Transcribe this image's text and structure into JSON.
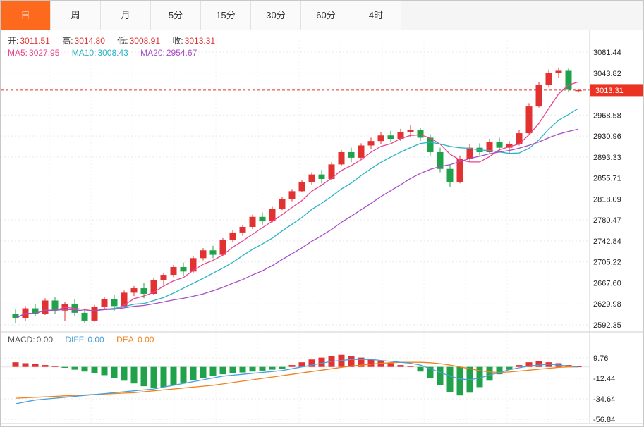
{
  "tabs": [
    {
      "label": "日",
      "active": true
    },
    {
      "label": "周",
      "active": false
    },
    {
      "label": "月",
      "active": false
    },
    {
      "label": "5分",
      "active": false
    },
    {
      "label": "15分",
      "active": false
    },
    {
      "label": "30分",
      "active": false
    },
    {
      "label": "60分",
      "active": false
    },
    {
      "label": "4时",
      "active": false
    }
  ],
  "ohlc_row": [
    {
      "label": "开:",
      "value": "3011.51"
    },
    {
      "label": "高:",
      "value": "3014.80"
    },
    {
      "label": "低:",
      "value": "3008.91"
    },
    {
      "label": "收:",
      "value": "3013.31"
    }
  ],
  "ma_row": [
    {
      "label": "MA5:",
      "value": "3027.95"
    },
    {
      "label": "MA10:",
      "value": "3008.43"
    },
    {
      "label": "MA20:",
      "value": "2954.67"
    }
  ],
  "macd_row": [
    {
      "label": "MACD:",
      "value": "0.00"
    },
    {
      "label": "DIFF:",
      "value": "0.00"
    },
    {
      "label": "DEA:",
      "value": "0.00"
    }
  ],
  "colors": {
    "up": "#e13131",
    "down": "#1fa24a",
    "ma5": "#e8448c",
    "ma10": "#29b3c8",
    "ma20": "#a94dc3",
    "diff": "#4a9fd8",
    "dea": "#f0821e",
    "price_line": "#e03030",
    "badge": "#ea3323",
    "tab_active": "#fd6a1e",
    "value_red": "#e03030",
    "macd_label": "#555555"
  },
  "chart_data": {
    "type": "candlestick",
    "title": "Daily gold price candlestick chart with MA5/MA10/MA20 and MACD",
    "legend_position": "top-left",
    "grid": true,
    "price_axis": {
      "min": 2592.35,
      "max": 3081.44,
      "step": 37.62,
      "labels": [
        {
          "v": 3081.44,
          "t": "3081.44"
        },
        {
          "v": 3043.82,
          "t": "3043.82"
        },
        {
          "v": 3006.2,
          "t": ""
        },
        {
          "v": 2968.58,
          "t": "2968.58"
        },
        {
          "v": 2930.96,
          "t": "2930.96"
        },
        {
          "v": 2893.33,
          "t": "2893.33"
        },
        {
          "v": 2855.71,
          "t": "2855.71"
        },
        {
          "v": 2818.09,
          "t": "2818.09"
        },
        {
          "v": 2780.47,
          "t": "2780.47"
        },
        {
          "v": 2742.84,
          "t": "2742.84"
        },
        {
          "v": 2705.22,
          "t": "2705.22"
        },
        {
          "v": 2667.6,
          "t": "2667.60"
        },
        {
          "v": 2629.98,
          "t": "2629.98"
        },
        {
          "v": 2592.35,
          "t": "2592.35"
        }
      ]
    },
    "current_price": {
      "value": 3013.31,
      "label": "3013.31"
    },
    "latest_ohlc": {
      "open": 3011.51,
      "high": 3014.8,
      "low": 3008.91,
      "close": 3013.31
    },
    "ma_values": {
      "ma5": 3027.95,
      "ma10": 3008.43,
      "ma20": 2954.67
    },
    "candles": [
      [
        2612,
        2620,
        2596,
        2604
      ],
      [
        2604,
        2626,
        2600,
        2622
      ],
      [
        2622,
        2630,
        2608,
        2612
      ],
      [
        2612,
        2640,
        2610,
        2636
      ],
      [
        2636,
        2642,
        2612,
        2618
      ],
      [
        2618,
        2634,
        2600,
        2630
      ],
      [
        2630,
        2638,
        2608,
        2614
      ],
      [
        2614,
        2622,
        2596,
        2600
      ],
      [
        2600,
        2628,
        2598,
        2624
      ],
      [
        2624,
        2642,
        2620,
        2638
      ],
      [
        2638,
        2646,
        2618,
        2626
      ],
      [
        2626,
        2654,
        2624,
        2650
      ],
      [
        2650,
        2662,
        2644,
        2658
      ],
      [
        2658,
        2668,
        2640,
        2648
      ],
      [
        2648,
        2676,
        2646,
        2672
      ],
      [
        2672,
        2686,
        2664,
        2682
      ],
      [
        2682,
        2700,
        2678,
        2696
      ],
      [
        2696,
        2704,
        2680,
        2688
      ],
      [
        2688,
        2716,
        2686,
        2712
      ],
      [
        2712,
        2730,
        2708,
        2726
      ],
      [
        2726,
        2734,
        2712,
        2718
      ],
      [
        2718,
        2748,
        2716,
        2744
      ],
      [
        2744,
        2762,
        2740,
        2758
      ],
      [
        2758,
        2772,
        2752,
        2768
      ],
      [
        2768,
        2790,
        2764,
        2786
      ],
      [
        2786,
        2794,
        2772,
        2778
      ],
      [
        2778,
        2804,
        2776,
        2800
      ],
      [
        2800,
        2822,
        2798,
        2818
      ],
      [
        2818,
        2836,
        2814,
        2832
      ],
      [
        2832,
        2852,
        2830,
        2848
      ],
      [
        2848,
        2866,
        2844,
        2862
      ],
      [
        2862,
        2870,
        2846,
        2854
      ],
      [
        2854,
        2884,
        2852,
        2880
      ],
      [
        2880,
        2906,
        2878,
        2902
      ],
      [
        2902,
        2910,
        2884,
        2892
      ],
      [
        2892,
        2918,
        2890,
        2914
      ],
      [
        2914,
        2928,
        2908,
        2922
      ],
      [
        2922,
        2938,
        2916,
        2932
      ],
      [
        2932,
        2940,
        2920,
        2926
      ],
      [
        2926,
        2944,
        2922,
        2938
      ],
      [
        2938,
        2950,
        2930,
        2942
      ],
      [
        2942,
        2946,
        2922,
        2928
      ],
      [
        2928,
        2934,
        2896,
        2902
      ],
      [
        2902,
        2910,
        2866,
        2872
      ],
      [
        2872,
        2880,
        2840,
        2848
      ],
      [
        2848,
        2896,
        2846,
        2890
      ],
      [
        2890,
        2916,
        2886,
        2910
      ],
      [
        2910,
        2918,
        2896,
        2902
      ],
      [
        2902,
        2926,
        2900,
        2920
      ],
      [
        2920,
        2928,
        2904,
        2910
      ],
      [
        2910,
        2922,
        2900,
        2916
      ],
      [
        2916,
        2942,
        2914,
        2936
      ],
      [
        2936,
        2990,
        2934,
        2984
      ],
      [
        2984,
        3028,
        2982,
        3022
      ],
      [
        3022,
        3050,
        3018,
        3044
      ],
      [
        3044,
        3054,
        3036,
        3048
      ],
      [
        3048,
        3052,
        3010,
        3014
      ],
      [
        3011.51,
        3014.8,
        3008.91,
        3013.31
      ]
    ],
    "macd": {
      "macd_value": 0.0,
      "diff_value": 0.0,
      "dea_value": 0.0,
      "axis_labels": [
        {
          "v": 9.76,
          "t": "9.76"
        },
        {
          "v": -12.44,
          "t": "-12.44"
        },
        {
          "v": -34.64,
          "t": "-34.64"
        },
        {
          "v": -56.84,
          "t": "-56.84"
        }
      ],
      "histogram": [
        5,
        4,
        3,
        2,
        1,
        -1,
        -3,
        -5,
        -7,
        -9,
        -12,
        -15,
        -18,
        -21,
        -23,
        -22,
        -20,
        -17,
        -14,
        -12,
        -10,
        -8,
        -7,
        -6,
        -5,
        -4,
        -3,
        -2,
        2,
        5,
        8,
        10,
        12,
        13,
        12,
        10,
        8,
        6,
        4,
        2,
        1,
        -5,
        -12,
        -20,
        -27,
        -31,
        -28,
        -22,
        -15,
        -8,
        -3,
        2,
        5,
        6,
        5,
        4,
        2,
        0.5
      ],
      "diff": [
        -40,
        -38,
        -36,
        -35,
        -34,
        -33,
        -32,
        -31,
        -30,
        -29,
        -28,
        -27,
        -26,
        -25,
        -24,
        -22,
        -20,
        -18,
        -16,
        -14,
        -12,
        -10,
        -9,
        -8,
        -7,
        -6,
        -5,
        -4,
        -2,
        0,
        2,
        4,
        6,
        7,
        8,
        8,
        8,
        7,
        6,
        5,
        4,
        2,
        -2,
        -6,
        -10,
        -13,
        -14,
        -12,
        -9,
        -6,
        -3,
        -1,
        1,
        2,
        3,
        2,
        1,
        0
      ],
      "dea": [
        -34,
        -33.5,
        -33,
        -32.5,
        -32,
        -31.5,
        -31,
        -30.5,
        -30,
        -29.5,
        -29,
        -28.5,
        -28,
        -27,
        -26,
        -25,
        -24,
        -23,
        -22,
        -21,
        -20,
        -18.5,
        -17,
        -15.5,
        -14,
        -12.5,
        -11,
        -9.5,
        -8,
        -6.5,
        -5,
        -3.5,
        -2,
        -0.5,
        1,
        2,
        3,
        4,
        4.5,
        5,
        5,
        5,
        4.5,
        3.5,
        2,
        0,
        -2,
        -4,
        -5.5,
        -6,
        -5.5,
        -4.5,
        -3.5,
        -2.5,
        -1.5,
        -0.5,
        0,
        0
      ]
    }
  }
}
